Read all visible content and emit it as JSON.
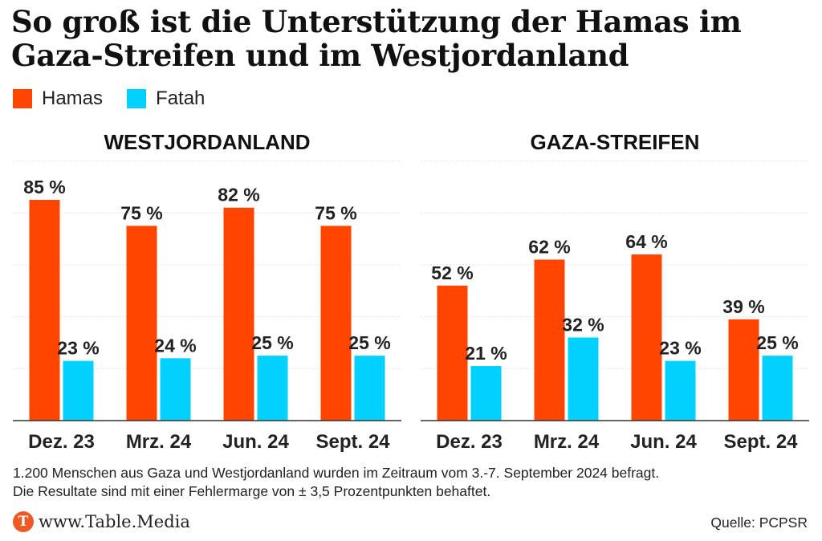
{
  "title": "So groß ist die Unterstützung der Hamas im Gaza-Streifen und im Westjordanland",
  "legend": [
    {
      "label": "Hamas",
      "color": "#ff4500"
    },
    {
      "label": "Fatah",
      "color": "#00d1ff"
    }
  ],
  "chart_data": [
    {
      "type": "bar",
      "title": "WESTJORDANLAND",
      "categories": [
        "Dez. 23",
        "Mrz. 24",
        "Jun. 24",
        "Sept. 24"
      ],
      "series": [
        {
          "name": "Hamas",
          "values": [
            85,
            75,
            82,
            75
          ],
          "labels": [
            "85 %",
            "75 %",
            "82 %",
            "75 %"
          ],
          "color": "#ff4500"
        },
        {
          "name": "Fatah",
          "values": [
            23,
            24,
            25,
            25
          ],
          "labels": [
            "23 %",
            "24 %",
            "25 %",
            "25 %"
          ],
          "color": "#00d1ff"
        }
      ],
      "ylim": [
        0,
        100
      ],
      "grid": true
    },
    {
      "type": "bar",
      "title": "GAZA-STREIFEN",
      "categories": [
        "Dez. 23",
        "Mrz. 24",
        "Jun. 24",
        "Sept. 24"
      ],
      "series": [
        {
          "name": "Hamas",
          "values": [
            52,
            62,
            64,
            39
          ],
          "labels": [
            "52 %",
            "62 %",
            "64 %",
            "39 %"
          ],
          "color": "#ff4500"
        },
        {
          "name": "Fatah",
          "values": [
            21,
            32,
            23,
            25
          ],
          "labels": [
            "21 %",
            "32 %",
            "23 %",
            "25 %"
          ],
          "color": "#00d1ff"
        }
      ],
      "ylim": [
        0,
        100
      ],
      "grid": true
    }
  ],
  "note": {
    "line1": "1.200 Menschen aus Gaza und Westjordanland wurden im Zeitraum vom 3.-7. September 2024 befragt.",
    "line2": "Die Resultate sind mit einer Fehlermarge von ± 3,5 Prozentpunkten behaftet."
  },
  "brand": {
    "logo_letter": "T",
    "text": "www.Table.Media"
  },
  "source": "Quelle: PCPSR"
}
